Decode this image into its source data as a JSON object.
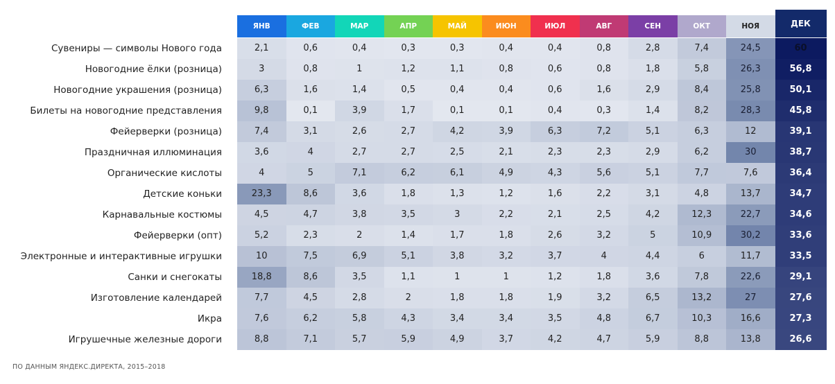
{
  "chart_data": {
    "type": "heatmap",
    "columns": [
      "ЯНВ",
      "ФЕВ",
      "МАР",
      "АПР",
      "МАЙ",
      "ИЮН",
      "ИЮЛ",
      "АВГ",
      "СЕН",
      "ОКТ",
      "НОЯ",
      "ДЕК"
    ],
    "header_colors": [
      "#1a6fe0",
      "#1aa7e0",
      "#12d6b8",
      "#74d254",
      "#f6c400",
      "#fb8c1e",
      "#f0304e",
      "#c03a74",
      "#7b3fa6",
      "#b0a8cc",
      "#d3dae6",
      "#132a6a"
    ],
    "header_text_colors": [
      "#ffffff",
      "#ffffff",
      "#ffffff",
      "#ffffff",
      "#ffffff",
      "#ffffff",
      "#ffffff",
      "#ffffff",
      "#ffffff",
      "#ffffff",
      "#222222",
      "#ffffff"
    ],
    "rows": [
      {
        "label": "Сувениры — символы Нового года",
        "values": [
          "2,1",
          "0,6",
          "0,4",
          "0,3",
          "0,3",
          "0,4",
          "0,4",
          "0,8",
          "2,8",
          "7,4",
          "24,5",
          "60"
        ]
      },
      {
        "label": "Новогодние ёлки (розница)",
        "values": [
          "3",
          "0,8",
          "1",
          "1,2",
          "1,1",
          "0,8",
          "0,6",
          "0,8",
          "1,8",
          "5,8",
          "26,3",
          "56,8"
        ]
      },
      {
        "label": "Новогодние украшения (розница)",
        "values": [
          "6,3",
          "1,6",
          "1,4",
          "0,5",
          "0,4",
          "0,4",
          "0,6",
          "1,6",
          "2,9",
          "8,4",
          "25,8",
          "50,1"
        ]
      },
      {
        "label": "Билеты на новогодние представления",
        "values": [
          "9,8",
          "0,1",
          "3,9",
          "1,7",
          "0,1",
          "0,1",
          "0,4",
          "0,3",
          "1,4",
          "8,2",
          "28,3",
          "45,8"
        ]
      },
      {
        "label": "Фейерверки (розница)",
        "values": [
          "7,4",
          "3,1",
          "2,6",
          "2,7",
          "4,2",
          "3,9",
          "6,3",
          "7,2",
          "5,1",
          "6,3",
          "12",
          "39,1"
        ]
      },
      {
        "label": "Праздничная иллюминация",
        "values": [
          "3,6",
          "4",
          "2,7",
          "2,7",
          "2,5",
          "2,1",
          "2,3",
          "2,3",
          "2,9",
          "6,2",
          "30",
          "38,7"
        ]
      },
      {
        "label": "Органические кислоты",
        "values": [
          "4",
          "5",
          "7,1",
          "6,2",
          "6,1",
          "4,9",
          "4,3",
          "5,6",
          "5,1",
          "7,7",
          "7,6",
          "36,4"
        ]
      },
      {
        "label": "Детские коньки",
        "values": [
          "23,3",
          "8,6",
          "3,6",
          "1,8",
          "1,3",
          "1,2",
          "1,6",
          "2,2",
          "3,1",
          "4,8",
          "13,7",
          "34,7"
        ]
      },
      {
        "label": "Карнавальные костюмы",
        "values": [
          "4,5",
          "4,7",
          "3,8",
          "3,5",
          "3",
          "2,2",
          "2,1",
          "2,5",
          "4,2",
          "12,3",
          "22,7",
          "34,6"
        ]
      },
      {
        "label": "Фейерверки (опт)",
        "values": [
          "5,2",
          "2,3",
          "2",
          "1,4",
          "1,7",
          "1,8",
          "2,6",
          "3,2",
          "5",
          "10,9",
          "30,2",
          "33,6"
        ]
      },
      {
        "label": "Электронные и интерактивные игрушки",
        "values": [
          "10",
          "7,5",
          "6,9",
          "5,1",
          "3,8",
          "3,2",
          "3,7",
          "4",
          "4,4",
          "6",
          "11,7",
          "33,5"
        ]
      },
      {
        "label": "Санки и снегокаты",
        "values": [
          "18,8",
          "8,6",
          "3,5",
          "1,1",
          "1",
          "1",
          "1,2",
          "1,8",
          "3,6",
          "7,8",
          "22,6",
          "29,1"
        ]
      },
      {
        "label": "Изготовление календарей",
        "values": [
          "7,7",
          "4,5",
          "2,8",
          "2",
          "1,8",
          "1,8",
          "1,9",
          "3,2",
          "6,5",
          "13,2",
          "27",
          "27,6"
        ]
      },
      {
        "label": "Икра",
        "values": [
          "7,6",
          "6,2",
          "5,8",
          "4,3",
          "3,4",
          "3,4",
          "3,5",
          "4,8",
          "6,7",
          "10,3",
          "16,6",
          "27,3"
        ]
      },
      {
        "label": "Игрушечные железные дороги",
        "values": [
          "8,8",
          "7,1",
          "5,7",
          "5,9",
          "4,9",
          "3,7",
          "4,2",
          "4,7",
          "5,9",
          "8,8",
          "13,8",
          "26,6"
        ]
      }
    ]
  },
  "source_note": "ПО ДАННЫМ ЯНДЕКС.ДИРЕКТА, 2015–2018"
}
